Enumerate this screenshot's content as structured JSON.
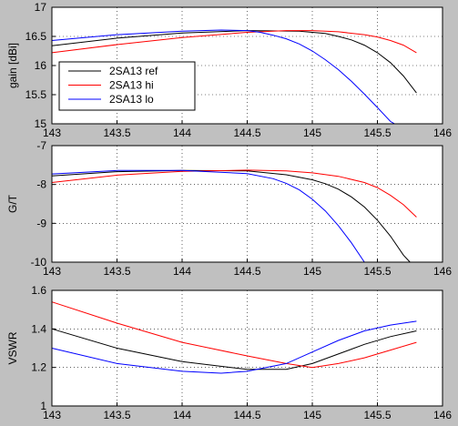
{
  "background": "#c0c0c0",
  "plot_background": "#ffffff",
  "series_colors": {
    "2SA13 ref": "#000000",
    "2SA13 hi": "#ff0000",
    "2SA13 lo": "#0000ff"
  },
  "legend_labels": [
    "2SA13 ref",
    "2SA13 hi",
    "2SA13 lo"
  ],
  "chart_data": [
    {
      "type": "line",
      "title": "",
      "xlabel": "",
      "ylabel": "gain [dBi]",
      "xlim": [
        143,
        146
      ],
      "ylim": [
        15,
        17
      ],
      "xticks": [
        "143",
        "143.5",
        "144",
        "144.5",
        "145",
        "145.5",
        "146"
      ],
      "yticks": [
        "15",
        "15.5",
        "16",
        "16.5",
        "17"
      ],
      "grid": true,
      "legend": "left",
      "series": [
        {
          "name": "2SA13 ref",
          "x": [
            143.0,
            143.5,
            144.0,
            144.5,
            144.9,
            145.0,
            145.1,
            145.2,
            145.3,
            145.4,
            145.5,
            145.6,
            145.7,
            145.8
          ],
          "y": [
            16.34,
            16.47,
            16.56,
            16.6,
            16.59,
            16.57,
            16.55,
            16.5,
            16.44,
            16.35,
            16.22,
            16.05,
            15.82,
            15.53
          ]
        },
        {
          "name": "2SA13 hi",
          "x": [
            143.0,
            143.5,
            144.0,
            144.5,
            144.8,
            145.0,
            145.2,
            145.4,
            145.5,
            145.6,
            145.7,
            145.8
          ],
          "y": [
            16.22,
            16.36,
            16.48,
            16.57,
            16.6,
            16.6,
            16.58,
            16.53,
            16.49,
            16.43,
            16.35,
            16.22
          ]
        },
        {
          "name": "2SA13 lo",
          "x": [
            143.0,
            143.5,
            144.0,
            144.3,
            144.5,
            144.6,
            144.7,
            144.8,
            144.9,
            145.0,
            145.1,
            145.2,
            145.3,
            145.4,
            145.5,
            145.6,
            145.67
          ],
          "y": [
            16.43,
            16.53,
            16.59,
            16.61,
            16.6,
            16.57,
            16.52,
            16.46,
            16.37,
            16.25,
            16.1,
            15.93,
            15.73,
            15.51,
            15.28,
            15.04,
            14.95
          ]
        }
      ]
    },
    {
      "type": "line",
      "title": "",
      "xlabel": "",
      "ylabel": "G/T",
      "xlim": [
        143,
        146
      ],
      "ylim": [
        -10,
        -7
      ],
      "xticks": [
        "143",
        "143.5",
        "144",
        "144.5",
        "145",
        "145.5",
        "146"
      ],
      "yticks": [
        "-10",
        "-9",
        "-8",
        "-7"
      ],
      "grid": true,
      "series": [
        {
          "name": "2SA13 ref",
          "x": [
            143.0,
            143.5,
            144.0,
            144.5,
            144.8,
            145.0,
            145.1,
            145.2,
            145.3,
            145.4,
            145.5,
            145.6,
            145.7,
            145.75
          ],
          "y": [
            -7.78,
            -7.67,
            -7.64,
            -7.65,
            -7.75,
            -7.88,
            -7.98,
            -8.12,
            -8.32,
            -8.58,
            -8.92,
            -9.33,
            -9.82,
            -10.0
          ]
        },
        {
          "name": "2SA13 hi",
          "x": [
            143.0,
            143.5,
            144.0,
            144.5,
            144.8,
            145.0,
            145.2,
            145.4,
            145.5,
            145.6,
            145.7,
            145.8
          ],
          "y": [
            -7.95,
            -7.76,
            -7.66,
            -7.63,
            -7.65,
            -7.7,
            -7.79,
            -7.95,
            -8.08,
            -8.28,
            -8.52,
            -8.84
          ]
        },
        {
          "name": "2SA13 lo",
          "x": [
            143.0,
            143.5,
            144.0,
            144.5,
            144.7,
            144.8,
            144.9,
            145.0,
            145.1,
            145.2,
            145.3,
            145.4
          ],
          "y": [
            -7.73,
            -7.64,
            -7.64,
            -7.72,
            -7.85,
            -7.97,
            -8.14,
            -8.38,
            -8.68,
            -9.06,
            -9.5,
            -10.0
          ]
        }
      ]
    },
    {
      "type": "line",
      "title": "",
      "xlabel": "",
      "ylabel": "VSWR",
      "xlim": [
        143,
        146
      ],
      "ylim": [
        1,
        1.6
      ],
      "xticks": [
        "143",
        "143.5",
        "144",
        "144.5",
        "145",
        "145.5",
        "146"
      ],
      "yticks": [
        "1",
        "1.2",
        "1.4",
        "1.6"
      ],
      "grid": true,
      "series": [
        {
          "name": "2SA13 ref",
          "x": [
            143.0,
            143.5,
            144.0,
            144.5,
            144.8,
            145.0,
            145.2,
            145.4,
            145.6,
            145.8
          ],
          "y": [
            1.4,
            1.3,
            1.23,
            1.19,
            1.19,
            1.22,
            1.27,
            1.32,
            1.36,
            1.39
          ]
        },
        {
          "name": "2SA13 hi",
          "x": [
            143.0,
            143.5,
            144.0,
            144.5,
            144.8,
            145.0,
            145.2,
            145.4,
            145.6,
            145.8
          ],
          "y": [
            1.54,
            1.43,
            1.33,
            1.26,
            1.22,
            1.2,
            1.22,
            1.25,
            1.29,
            1.33
          ]
        },
        {
          "name": "2SA13 lo",
          "x": [
            143.0,
            143.5,
            144.0,
            144.3,
            144.5,
            144.8,
            145.0,
            145.2,
            145.4,
            145.6,
            145.8
          ],
          "y": [
            1.3,
            1.22,
            1.18,
            1.17,
            1.18,
            1.22,
            1.28,
            1.34,
            1.39,
            1.42,
            1.44
          ]
        }
      ]
    }
  ]
}
